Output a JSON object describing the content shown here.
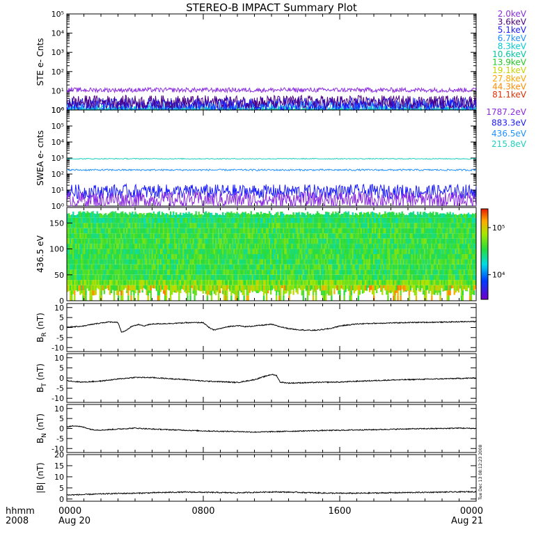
{
  "title": "STEREO-B IMPACT Summary Plot",
  "timestamp": "Tue Dec 13 08:12:23 2008",
  "x_axis": {
    "row1_label": "hhmm",
    "row2_label": "2008",
    "ticks": [
      {
        "value": 0,
        "top": "0000",
        "bottom": "Aug 20"
      },
      {
        "value": 8,
        "top": "0800",
        "bottom": ""
      },
      {
        "value": 16,
        "top": "1600",
        "bottom": ""
      },
      {
        "value": 24,
        "top": "0000",
        "bottom": "Aug 21"
      }
    ],
    "range_hours": [
      0,
      24
    ]
  },
  "chart_data": [
    {
      "id": "ste",
      "type": "line",
      "ylabel": "STE e- Cnts",
      "yscale": "log",
      "ylim_exp": [
        0,
        5
      ],
      "tick_labels": [
        "10⁰",
        "10¹",
        "10²",
        "10³",
        "10⁴",
        "10⁵"
      ],
      "series": [
        {
          "name": "2.0keV",
          "color": "#8a2be2",
          "level": 11,
          "noise": 0.12
        },
        {
          "name": "3.6keV",
          "color": "#4b0082",
          "level": 2.6,
          "noise": 0.35
        },
        {
          "name": "5.1keV",
          "color": "#1a1aff",
          "level": 2.0,
          "noise": 0.35
        },
        {
          "name": "6.7keV",
          "color": "#1e90ff",
          "level": 1.5,
          "noise": 0.3
        },
        {
          "name": "8.3keV",
          "color": "#00ced1",
          "level": 1.1,
          "noise": 0.2
        },
        {
          "name": "10.6keV",
          "color": "#00c8a0",
          "level": 1.0,
          "noise": 0.1
        },
        {
          "name": "13.9keV",
          "color": "#22c922",
          "level": 1.0,
          "noise": 0.05
        },
        {
          "name": "19.1keV",
          "color": "#c8d200",
          "level": 1.0,
          "noise": 0.03
        },
        {
          "name": "27.8keV",
          "color": "#ffa500",
          "level": 1.0,
          "noise": 0.02
        },
        {
          "name": "44.3keV",
          "color": "#ff8c00",
          "level": 1.0,
          "noise": 0.02
        },
        {
          "name": "81.1keV",
          "color": "#e03000",
          "level": 1.0,
          "noise": 0.02
        }
      ]
    },
    {
      "id": "swea",
      "type": "line",
      "ylabel": "SWEA e- cnts",
      "yscale": "log",
      "ylim_exp": [
        0,
        6
      ],
      "tick_labels": [
        "10⁰",
        "10¹",
        "10²",
        "10³",
        "10⁴",
        "10⁵",
        "10⁶"
      ],
      "series": [
        {
          "name": "1787.2eV",
          "color": "#8a2be2",
          "level": 2.5,
          "noise": 0.5
        },
        {
          "name": "883.3eV",
          "color": "#1a1aff",
          "level": 8,
          "noise": 0.45
        },
        {
          "name": "436.5eV",
          "color": "#1e90ff",
          "level": 180,
          "noise": 0.05
        },
        {
          "name": "215.8eV",
          "color": "#20d0c0",
          "level": 900,
          "noise": 0.03
        }
      ]
    },
    {
      "id": "pad",
      "type": "heatmap",
      "ylabel": "436.5 eV",
      "ylim": [
        0,
        180
      ],
      "yticks": [
        0,
        50,
        100,
        150
      ],
      "tick_labels": [
        "0",
        "50",
        "100",
        "150"
      ],
      "colorbar": {
        "scale": "log",
        "range": [
          3000,
          250000
        ],
        "tick_labels": [
          "10⁴",
          "10⁵"
        ],
        "tick_values": [
          10000,
          100000
        ]
      }
    },
    {
      "id": "br",
      "type": "line",
      "ylabel_main": "B",
      "ylabel_sub": "R",
      "ylabel_unit": "(nT)",
      "ylim": [
        -12,
        12
      ],
      "tick_labels": [
        "-10",
        "-5",
        "0",
        "5",
        "10"
      ],
      "yticks": [
        -10,
        -5,
        0,
        5,
        10
      ],
      "x": [
        0,
        0.5,
        1,
        1.5,
        2,
        2.5,
        3,
        3.2,
        3.4,
        3.8,
        4.2,
        4.5,
        5,
        6,
        7,
        8,
        8.3,
        8.6,
        9,
        9.5,
        10,
        10.5,
        11,
        11.5,
        12,
        12.5,
        13,
        13.5,
        14,
        14.5,
        15,
        15.5,
        16,
        17,
        18,
        19,
        20,
        21,
        22,
        23,
        24
      ],
      "values": [
        0.3,
        0.4,
        0.8,
        1.6,
        2.3,
        2.8,
        2.6,
        -2.2,
        -2.0,
        0.6,
        1.5,
        0.8,
        1.8,
        2.0,
        2.4,
        2.5,
        0.2,
        -1.2,
        -0.5,
        0.5,
        1.0,
        0.4,
        0.8,
        1.2,
        1.6,
        0.4,
        -0.5,
        -1.0,
        -1.3,
        -1.4,
        -1.0,
        -0.4,
        0.8,
        1.8,
        2.1,
        2.3,
        2.5,
        2.6,
        2.7,
        2.9,
        3.0
      ]
    },
    {
      "id": "bt",
      "type": "line",
      "ylabel_main": "B",
      "ylabel_sub": "T",
      "ylabel_unit": "(nT)",
      "ylim": [
        -12,
        12
      ],
      "tick_labels": [
        "-10",
        "-5",
        "0",
        "5",
        "10"
      ],
      "yticks": [
        -10,
        -5,
        0,
        5,
        10
      ],
      "x": [
        0,
        0.5,
        1,
        2,
        3,
        4,
        5,
        6,
        7,
        8,
        9,
        10,
        11,
        11.5,
        12,
        12.3,
        12.5,
        13,
        14,
        15,
        16,
        17,
        18,
        19,
        20,
        21,
        22,
        23,
        24
      ],
      "values": [
        -1.2,
        -1.8,
        -2.0,
        -1.5,
        -0.5,
        0.3,
        0.2,
        -0.3,
        -0.8,
        -1.5,
        -1.8,
        -2.2,
        -0.8,
        0.5,
        1.8,
        1.2,
        -2.0,
        -2.5,
        -2.3,
        -2.1,
        -2.0,
        -1.6,
        -1.3,
        -1.0,
        -0.8,
        -0.6,
        -0.4,
        -0.2,
        0.0
      ]
    },
    {
      "id": "bn",
      "type": "line",
      "ylabel_main": "B",
      "ylabel_sub": "N",
      "ylabel_unit": "(nT)",
      "ylim": [
        -12,
        12
      ],
      "tick_labels": [
        "-10",
        "-5",
        "0",
        "5",
        "10"
      ],
      "yticks": [
        -10,
        -5,
        0,
        5,
        10
      ],
      "x": [
        0,
        0.5,
        1,
        1.5,
        2,
        3,
        4,
        5,
        6,
        7,
        8,
        9,
        10,
        11,
        12,
        13,
        14,
        15,
        16,
        17,
        18,
        19,
        20,
        21,
        22,
        23,
        24
      ],
      "values": [
        0.8,
        1.4,
        0.6,
        -0.6,
        -0.8,
        -0.3,
        0.2,
        -0.3,
        -0.6,
        -0.9,
        -1.2,
        -1.4,
        -1.5,
        -1.8,
        -1.6,
        -1.4,
        -1.2,
        -1.0,
        -0.9,
        -0.7,
        -0.6,
        -0.4,
        -0.2,
        -0.1,
        0.0,
        0.2,
        0.0
      ]
    },
    {
      "id": "bmag",
      "type": "line",
      "ylabel_main": "|B|",
      "ylabel_sub": "",
      "ylabel_unit": "(nT)",
      "ylim": [
        -1,
        20
      ],
      "tick_labels": [
        "0",
        "5",
        "10",
        "15",
        "20"
      ],
      "yticks": [
        0,
        5,
        10,
        15,
        20
      ],
      "x": [
        0,
        1,
        2,
        3,
        4,
        5,
        6,
        7,
        8,
        9,
        10,
        11,
        12,
        13,
        14,
        15,
        16,
        17,
        18,
        19,
        20,
        21,
        22,
        23,
        24
      ],
      "values": [
        1.8,
        2.0,
        2.3,
        2.5,
        2.6,
        2.8,
        3.0,
        3.1,
        3.0,
        2.9,
        2.8,
        3.0,
        3.2,
        3.1,
        2.9,
        2.7,
        2.6,
        2.6,
        2.7,
        2.8,
        2.9,
        3.0,
        3.1,
        3.2,
        3.3
      ]
    }
  ]
}
